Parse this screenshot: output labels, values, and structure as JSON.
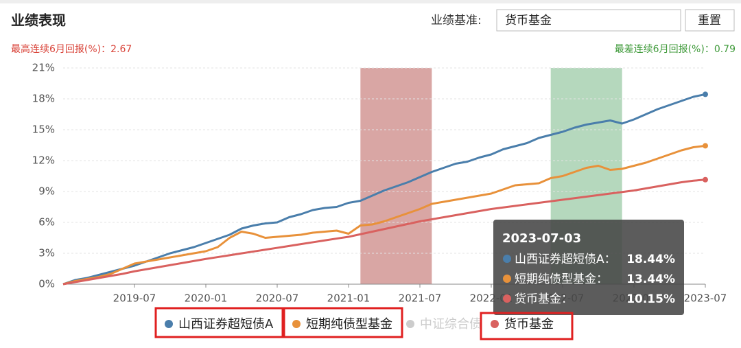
{
  "header": {
    "title": "业绩表现",
    "benchmark_label": "业绩基准:",
    "benchmark_value": "货币基金",
    "reset": "重置"
  },
  "stats": {
    "best_label": "最高连续6月回报(%)：",
    "best_value": 2.67,
    "worst_label": "最差连续6月回报(%)：",
    "worst_value": 0.79
  },
  "chart_data": {
    "type": "line",
    "x": [
      "2019-01",
      "2019-02",
      "2019-03",
      "2019-04",
      "2019-05",
      "2019-06",
      "2019-07",
      "2019-08",
      "2019-09",
      "2019-10",
      "2019-11",
      "2019-12",
      "2020-01",
      "2020-02",
      "2020-03",
      "2020-04",
      "2020-05",
      "2020-06",
      "2020-07",
      "2020-08",
      "2020-09",
      "2020-10",
      "2020-11",
      "2020-12",
      "2021-01",
      "2021-02",
      "2021-03",
      "2021-04",
      "2021-05",
      "2021-06",
      "2021-07",
      "2021-08",
      "2021-09",
      "2021-10",
      "2021-11",
      "2021-12",
      "2022-01",
      "2022-02",
      "2022-03",
      "2022-04",
      "2022-05",
      "2022-06",
      "2022-07",
      "2022-08",
      "2022-09",
      "2022-10",
      "2022-11",
      "2022-12",
      "2023-01",
      "2023-02",
      "2023-03",
      "2023-04",
      "2023-05",
      "2023-06",
      "2023-07"
    ],
    "series": [
      {
        "name": "山西证券超短债A",
        "color": "#4a7eab",
        "values": [
          0,
          0.4,
          0.6,
          0.9,
          1.2,
          1.5,
          1.8,
          2.2,
          2.6,
          3.0,
          3.3,
          3.6,
          4.0,
          4.4,
          4.8,
          5.4,
          5.7,
          5.9,
          6.0,
          6.5,
          6.8,
          7.2,
          7.4,
          7.5,
          7.9,
          8.1,
          8.6,
          9.1,
          9.5,
          9.9,
          10.4,
          10.9,
          11.3,
          11.7,
          11.9,
          12.3,
          12.6,
          13.1,
          13.4,
          13.7,
          14.2,
          14.5,
          14.8,
          15.2,
          15.5,
          15.7,
          15.9,
          15.6,
          16.0,
          16.5,
          17.0,
          17.4,
          17.8,
          18.2,
          18.44
        ]
      },
      {
        "name": "短期纯债型基金",
        "color": "#e8913a",
        "values": [
          0,
          0.3,
          0.5,
          0.7,
          1.0,
          1.5,
          2.0,
          2.2,
          2.4,
          2.6,
          2.8,
          3.0,
          3.2,
          3.6,
          4.5,
          5.1,
          4.9,
          4.5,
          4.6,
          4.7,
          4.8,
          5.0,
          5.1,
          5.2,
          4.9,
          5.7,
          5.8,
          6.1,
          6.5,
          6.9,
          7.3,
          7.8,
          8.0,
          8.2,
          8.4,
          8.6,
          8.8,
          9.2,
          9.6,
          9.7,
          9.8,
          10.3,
          10.5,
          10.9,
          11.3,
          11.5,
          11.1,
          11.2,
          11.5,
          11.8,
          12.2,
          12.6,
          13.0,
          13.3,
          13.44
        ]
      },
      {
        "name": "货币基金",
        "color": "#d9615f",
        "values": [
          0,
          0.2,
          0.4,
          0.6,
          0.8,
          1.0,
          1.25,
          1.45,
          1.65,
          1.85,
          2.05,
          2.25,
          2.45,
          2.63,
          2.81,
          2.99,
          3.17,
          3.35,
          3.53,
          3.71,
          3.89,
          4.07,
          4.25,
          4.43,
          4.6,
          4.85,
          5.1,
          5.35,
          5.6,
          5.85,
          6.1,
          6.3,
          6.5,
          6.7,
          6.9,
          7.1,
          7.3,
          7.45,
          7.6,
          7.75,
          7.9,
          8.05,
          8.2,
          8.35,
          8.5,
          8.65,
          8.8,
          8.95,
          9.1,
          9.3,
          9.5,
          9.7,
          9.9,
          10.05,
          10.15
        ]
      }
    ],
    "hidden_legend": {
      "name": "中证综合债",
      "color": "#cccccc"
    },
    "bands": [
      {
        "from": "2021-02",
        "to": "2021-08",
        "color": "#d9a6a4"
      },
      {
        "from": "2022-06",
        "to": "2022-12",
        "color": "#b5d8bd"
      }
    ],
    "xlim": [
      "2019-01",
      "2023-07"
    ],
    "xticks": [
      "2019-07",
      "2020-01",
      "2020-07",
      "2021-01",
      "2021-07",
      "2022-01",
      "2022-07",
      "2023-01",
      "2023-07"
    ],
    "ylim": [
      0,
      21
    ],
    "yticks": [
      {
        "value": 0,
        "label": "0%"
      },
      {
        "value": 3,
        "label": "3%"
      },
      {
        "value": 6,
        "label": "6%"
      },
      {
        "value": 9,
        "label": "9%"
      },
      {
        "value": 12,
        "label": "12%"
      },
      {
        "value": 15,
        "label": "15%"
      },
      {
        "value": 18,
        "label": "18%"
      },
      {
        "value": 21,
        "label": "21%"
      }
    ],
    "grid": true,
    "tooltip": {
      "date": "2023-07-03",
      "rows": [
        {
          "name": "山西证券超短债A：",
          "value": "18.44%",
          "color": "#4a7eab"
        },
        {
          "name": "短期纯债型基金：",
          "value": "13.44%",
          "color": "#e8913a"
        },
        {
          "name": "货币基金：",
          "value": "10.15%",
          "color": "#d9615f"
        }
      ]
    }
  }
}
